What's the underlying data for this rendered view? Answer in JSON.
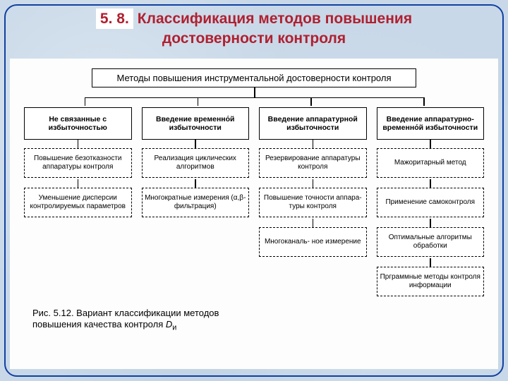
{
  "title": {
    "number": "5. 8.",
    "text_l1": "Классификация  методов  повышения",
    "text_l2": "достоверности  контроля"
  },
  "diagram": {
    "root": "Методы повышения инструментальной достоверности контроля",
    "columns": [
      {
        "category": "Не связанные с избыточностью",
        "subs": [
          "Повышение безотказности аппаратуры контроля",
          "Уменьшение дисперсии контролируемых параметров"
        ]
      },
      {
        "category": "Введение временно́й избыточности",
        "subs": [
          "Реализация циклических алгоритмов",
          "Многократные измерения (α,β-фильтрация)"
        ]
      },
      {
        "category": "Введение аппаратурной избыточности",
        "subs": [
          "Резервирование аппаратуры контроля",
          "Повышение точности аппара- туры контроля",
          "Многоканаль- ное измерение"
        ]
      },
      {
        "category": "Введение аппаратурно- временно́й избыточности",
        "subs": [
          "Мажоритарный метод",
          "Применение самоконтроля",
          "Оптимальные алгоритмы обработки",
          "Прграммные методы контроля информации"
        ]
      }
    ]
  },
  "caption": {
    "line1": "Рис. 5.12. Вариант классификации методов",
    "line2_prefix": "повышения качества контроля ",
    "var": "D",
    "sub": "и"
  },
  "layout": {
    "root_vline_left_pct": 50,
    "hline_left_pct": 14,
    "hline_right_pct": 86,
    "drop_positions_pct": [
      14,
      38,
      62,
      86
    ]
  },
  "colors": {
    "background": "#c8d8e8",
    "border": "#1040a0",
    "title": "#b02030",
    "line": "#000000",
    "panel": "#fdfdfd"
  }
}
